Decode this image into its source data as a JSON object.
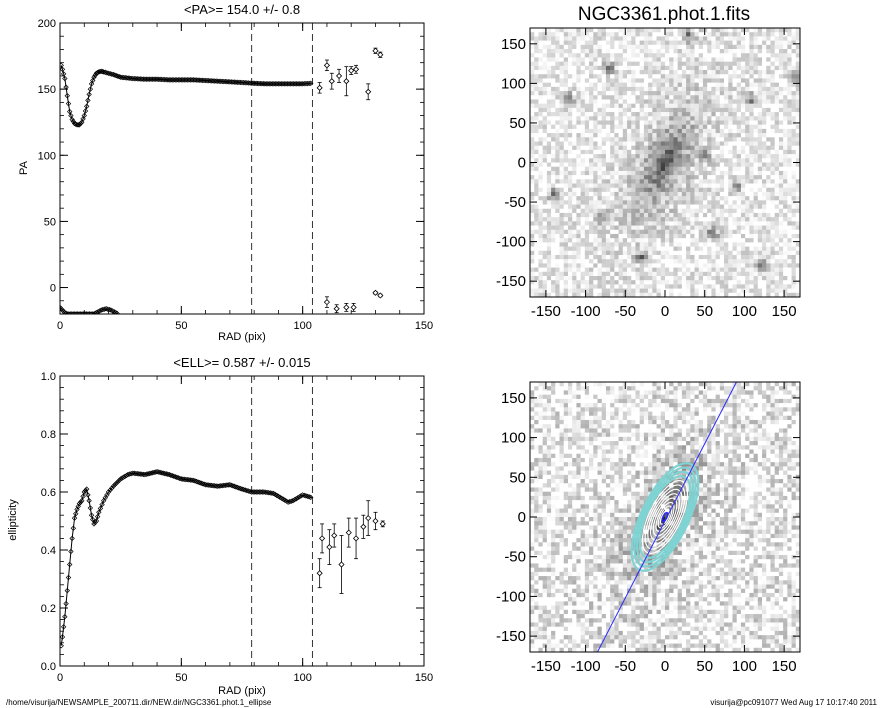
{
  "footer": {
    "path": "/home/visurija/NEWSAMPLE_200711.dir/NEW.dir/NGC3361.phot.1_ellipse",
    "user_stamp": "visurija@pc091077  Wed Aug 17 10:17:40 2011"
  },
  "colors": {
    "ink": "#000000",
    "contour_cyan": "#7fd3d3",
    "major_axis_line": "#2a2aff"
  },
  "chart_data": [
    {
      "id": "pa",
      "type": "scatter",
      "title": "<PA>= 154.0 +/-   0.8",
      "xlabel": "RAD (pix)",
      "ylabel": "PA",
      "xlim": [
        0,
        150
      ],
      "ylim": [
        -20,
        200
      ],
      "xticks": [
        "0",
        "50",
        "100",
        "150"
      ],
      "yticks": [
        "0",
        "50",
        "100",
        "150",
        "200"
      ],
      "vlines": [
        79,
        104
      ],
      "smooth_curve": [
        [
          0.5,
          168
        ],
        [
          1,
          165
        ],
        [
          2,
          158
        ],
        [
          3,
          145
        ],
        [
          4,
          133
        ],
        [
          5,
          127
        ],
        [
          6,
          124
        ],
        [
          7,
          123
        ],
        [
          8,
          123
        ],
        [
          9,
          125
        ],
        [
          10,
          130
        ],
        [
          11,
          137
        ],
        [
          12,
          146
        ],
        [
          13,
          154
        ],
        [
          14,
          159
        ],
        [
          15,
          162
        ],
        [
          16,
          163
        ],
        [
          17,
          163.5
        ],
        [
          18,
          163
        ],
        [
          20,
          162
        ],
        [
          22,
          161
        ],
        [
          25,
          159
        ],
        [
          30,
          158
        ],
        [
          35,
          157.5
        ],
        [
          40,
          157.5
        ],
        [
          45,
          157
        ],
        [
          50,
          157
        ],
        [
          55,
          157
        ],
        [
          60,
          156.5
        ],
        [
          65,
          156
        ],
        [
          70,
          155.5
        ],
        [
          75,
          155
        ],
        [
          79,
          154.5
        ],
        [
          85,
          154
        ],
        [
          90,
          154
        ],
        [
          95,
          154
        ],
        [
          100,
          154
        ],
        [
          104,
          154.5
        ]
      ],
      "wrapped_curve": [
        [
          0,
          -15
        ],
        [
          1,
          -17
        ],
        [
          2,
          -19
        ],
        [
          3,
          -20
        ],
        [
          14,
          -20
        ],
        [
          15,
          -19
        ],
        [
          17,
          -17
        ],
        [
          19,
          -16
        ],
        [
          21,
          -17
        ],
        [
          23,
          -19
        ],
        [
          24,
          -20
        ]
      ],
      "error_points": [
        {
          "x": 107,
          "y": 151,
          "err": 4
        },
        {
          "x": 110,
          "y": 168,
          "err": 4
        },
        {
          "x": 112,
          "y": 156,
          "err": 6
        },
        {
          "x": 115,
          "y": 160,
          "err": 5
        },
        {
          "x": 118,
          "y": 156,
          "err": 11
        },
        {
          "x": 120,
          "y": 164,
          "err": 3
        },
        {
          "x": 122,
          "y": 165,
          "err": 3
        },
        {
          "x": 127,
          "y": 148,
          "err": 6
        },
        {
          "x": 130,
          "y": 179,
          "err": 2
        },
        {
          "x": 132,
          "y": 176,
          "err": 2
        },
        {
          "x": 110,
          "y": -11,
          "err": 4
        },
        {
          "x": 114,
          "y": -16,
          "err": 3
        },
        {
          "x": 118,
          "y": -15,
          "err": 3
        },
        {
          "x": 121,
          "y": -15,
          "err": 3
        },
        {
          "x": 130,
          "y": -4,
          "err": 1
        },
        {
          "x": 132,
          "y": -6,
          "err": 1
        }
      ]
    },
    {
      "id": "ell",
      "type": "scatter",
      "title": "<ELL>= 0.587 +/-  0.015",
      "xlabel": "RAD (pix)",
      "ylabel": "ellipticity",
      "xlim": [
        0,
        150
      ],
      "ylim": [
        0,
        1
      ],
      "xticks": [
        "0",
        "50",
        "100",
        "150"
      ],
      "yticks": [
        "0.0",
        "0.2",
        "0.4",
        "0.6",
        "0.8",
        "1.0"
      ],
      "vlines": [
        79,
        104
      ],
      "smooth_curve": [
        [
          0.5,
          0.07
        ],
        [
          1,
          0.1
        ],
        [
          2,
          0.17
        ],
        [
          3,
          0.26
        ],
        [
          4,
          0.35
        ],
        [
          5,
          0.44
        ],
        [
          6,
          0.51
        ],
        [
          7,
          0.54
        ],
        [
          8,
          0.56
        ],
        [
          9,
          0.57
        ],
        [
          10,
          0.6
        ],
        [
          11,
          0.61
        ],
        [
          12,
          0.57
        ],
        [
          13,
          0.52
        ],
        [
          14,
          0.49
        ],
        [
          15,
          0.5
        ],
        [
          16,
          0.53
        ],
        [
          18,
          0.57
        ],
        [
          20,
          0.6
        ],
        [
          22,
          0.62
        ],
        [
          25,
          0.645
        ],
        [
          28,
          0.66
        ],
        [
          30,
          0.665
        ],
        [
          35,
          0.66
        ],
        [
          40,
          0.67
        ],
        [
          45,
          0.66
        ],
        [
          50,
          0.645
        ],
        [
          55,
          0.64
        ],
        [
          60,
          0.625
        ],
        [
          65,
          0.62
        ],
        [
          70,
          0.625
        ],
        [
          75,
          0.61
        ],
        [
          79,
          0.6
        ],
        [
          84,
          0.6
        ],
        [
          88,
          0.595
        ],
        [
          92,
          0.575
        ],
        [
          94,
          0.565
        ],
        [
          96,
          0.57
        ],
        [
          98,
          0.58
        ],
        [
          100,
          0.59
        ],
        [
          102,
          0.585
        ],
        [
          104,
          0.58
        ]
      ],
      "error_points": [
        {
          "x": 107,
          "y": 0.32,
          "err": 0.05
        },
        {
          "x": 108,
          "y": 0.44,
          "err": 0.05
        },
        {
          "x": 111,
          "y": 0.41,
          "err": 0.06
        },
        {
          "x": 113,
          "y": 0.45,
          "err": 0.04
        },
        {
          "x": 116,
          "y": 0.35,
          "err": 0.1
        },
        {
          "x": 119,
          "y": 0.46,
          "err": 0.05
        },
        {
          "x": 122,
          "y": 0.44,
          "err": 0.07
        },
        {
          "x": 125,
          "y": 0.48,
          "err": 0.04
        },
        {
          "x": 127,
          "y": 0.51,
          "err": 0.06
        },
        {
          "x": 130,
          "y": 0.5,
          "err": 0.03
        },
        {
          "x": 133,
          "y": 0.49,
          "err": 0.01
        }
      ]
    },
    {
      "id": "image-top",
      "type": "heatmap",
      "title": "NGC3361.phot.1.fits",
      "xlim": [
        -170,
        170
      ],
      "ylim": [
        -170,
        170
      ],
      "xticks": [
        "-150",
        "-100",
        "-50",
        "0",
        "50",
        "100",
        "150"
      ],
      "yticks": [
        "-150",
        "-100",
        "-50",
        "0",
        "50",
        "100",
        "150"
      ],
      "galaxy": {
        "pa_deg": 154,
        "ellipticity": 0.6
      },
      "stars": [
        [
          -120,
          80
        ],
        [
          -70,
          120
        ],
        [
          30,
          160
        ],
        [
          110,
          80
        ],
        [
          165,
          110
        ],
        [
          90,
          -30
        ],
        [
          50,
          10
        ],
        [
          -80,
          -70
        ],
        [
          -30,
          -120
        ],
        [
          120,
          -130
        ],
        [
          -140,
          -40
        ],
        [
          60,
          -90
        ]
      ]
    },
    {
      "id": "image-bottom",
      "type": "heatmap",
      "title": "",
      "xlim": [
        -170,
        170
      ],
      "ylim": [
        -170,
        170
      ],
      "xticks": [
        "-150",
        "-100",
        "-50",
        "0",
        "50",
        "100",
        "150"
      ],
      "yticks": [
        "-150",
        "-100",
        "-50",
        "0",
        "50",
        "100",
        "150"
      ],
      "galaxy": {
        "pa_deg": 154,
        "ellipticity": 0.6
      },
      "contour_semi_major": [
        10,
        15,
        20,
        26,
        32,
        38,
        44,
        50,
        56,
        62,
        68,
        74
      ],
      "major_axis_line": [
        [
          -85,
          -170
        ],
        [
          90,
          170
        ]
      ]
    }
  ]
}
